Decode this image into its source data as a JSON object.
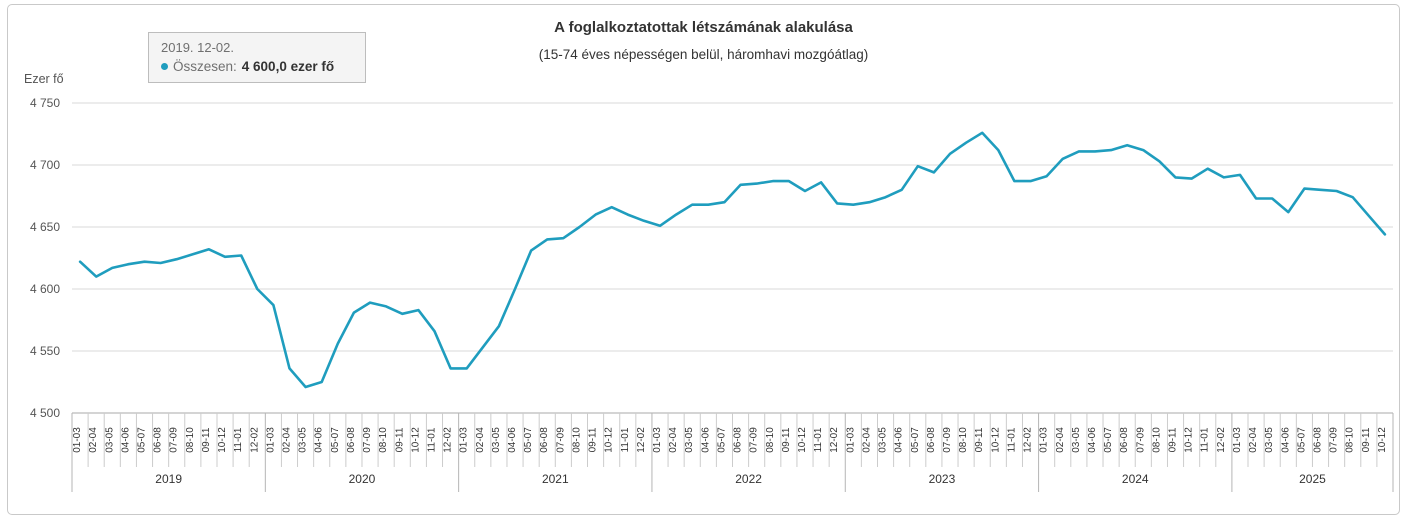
{
  "header": {
    "title": "A foglalkoztatottak létszámának alakulása",
    "subtitle": "(15-74 éves népességen belül, háromhavi mozgóátlag)"
  },
  "tooltip": {
    "date_label": "2019. 12-02.",
    "series_label": "Összesen:",
    "value_label": "4 600,0 ezer fő",
    "marker_color": "#1f9dbe"
  },
  "y_axis": {
    "unit_label": "Ezer fő",
    "tick_labels": [
      "4 500",
      "4 550",
      "4 600",
      "4 650",
      "4 700",
      "4 750"
    ],
    "min": 4500,
    "max": 4750,
    "step": 50
  },
  "chart_data": {
    "type": "line",
    "title": "A foglalkoztatottak létszámának alakulása",
    "subtitle": "(15-74 éves népességen belül, háromhavi mozgóátlag)",
    "ylabel": "Ezer fő",
    "ylim": [
      4500,
      4750
    ],
    "grid": "horizontal",
    "line_color": "#1f9dbe",
    "gridline_color": "#d8d8d8",
    "axis_line_color": "#aaaaaa",
    "tick_text_color": "#555555",
    "label_text_color": "#333333",
    "series_name": "Összesen",
    "highlighted_point": {
      "year": "2019",
      "period": "12-02",
      "value": 4600.0
    },
    "years": [
      {
        "year": "2019",
        "periods": [
          "01-03",
          "02-04",
          "03-05",
          "04-06",
          "05-07",
          "06-08",
          "07-09",
          "08-10",
          "09-11",
          "10-12",
          "11-01",
          "12-02"
        ],
        "values": [
          4622,
          4610,
          4617,
          4620,
          4622,
          4621,
          4624,
          4628,
          4632,
          4626,
          4627,
          4600
        ]
      },
      {
        "year": "2020",
        "periods": [
          "01-03",
          "02-04",
          "03-05",
          "04-06",
          "05-07",
          "06-08",
          "07-09",
          "08-10",
          "09-11",
          "10-12",
          "11-01",
          "12-02"
        ],
        "values": [
          4587,
          4536,
          4521,
          4525,
          4556,
          4581,
          4589,
          4586,
          4580,
          4583,
          4566,
          4536
        ]
      },
      {
        "year": "2021",
        "periods": [
          "01-03",
          "02-04",
          "03-05",
          "04-06",
          "05-07",
          "06-08",
          "07-09",
          "08-10",
          "09-11",
          "10-12",
          "11-01",
          "12-02"
        ],
        "values": [
          4536,
          4553,
          4570,
          4600,
          4631,
          4640,
          4641,
          4650,
          4660,
          4666,
          4660,
          4655
        ]
      },
      {
        "year": "2022",
        "periods": [
          "01-03",
          "02-04",
          "03-05",
          "04-06",
          "05-07",
          "06-08",
          "07-09",
          "08-10",
          "09-11",
          "10-12",
          "11-01",
          "12-02"
        ],
        "values": [
          4651,
          4660,
          4668,
          4668,
          4670,
          4684,
          4685,
          4687,
          4687,
          4679,
          4686,
          4669
        ]
      },
      {
        "year": "2023",
        "periods": [
          "01-03",
          "02-04",
          "03-05",
          "04-06",
          "05-07",
          "06-08",
          "07-09",
          "08-10",
          "09-11",
          "10-12",
          "11-01",
          "12-02"
        ],
        "values": [
          4668,
          4670,
          4674,
          4680,
          4699,
          4694,
          4709,
          4718,
          4726,
          4712,
          4687,
          4687
        ]
      },
      {
        "year": "2024",
        "periods": [
          "01-03",
          "02-04",
          "03-05",
          "04-06",
          "05-07",
          "06-08",
          "07-09",
          "08-10",
          "09-11",
          "10-12",
          "11-01",
          "12-02"
        ],
        "values": [
          4691,
          4705,
          4711,
          4711,
          4712,
          4716,
          4712,
          4703,
          4690,
          4689,
          4697,
          4690
        ]
      },
      {
        "year": "2025",
        "periods": [
          "01-03",
          "02-04",
          "03-05",
          "04-06",
          "05-07",
          "06-08",
          "07-09",
          "08-10",
          "09-11",
          "10-12"
        ],
        "values": [
          4692,
          4673,
          4673,
          4662,
          4681,
          4680,
          4679,
          4674,
          4659,
          4644
        ]
      }
    ]
  }
}
